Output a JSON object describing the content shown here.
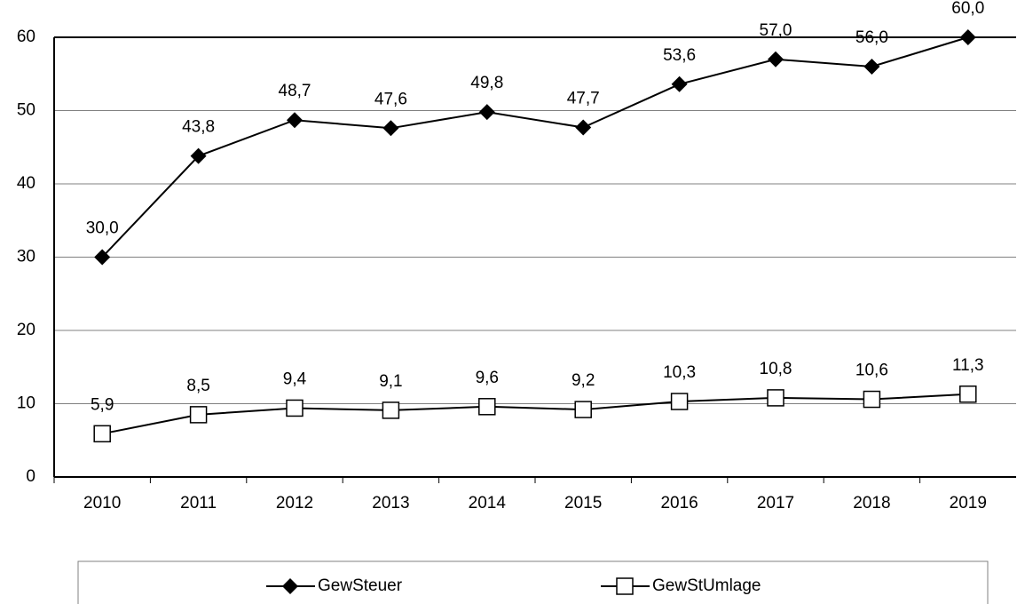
{
  "chart_data": {
    "type": "line",
    "categories": [
      "2010",
      "2011",
      "2012",
      "2013",
      "2014",
      "2015",
      "2016",
      "2017",
      "2018",
      "2019"
    ],
    "series": [
      {
        "name": "GewSteuer",
        "color": "#000000",
        "marker": "diamond",
        "values": [
          30.0,
          43.8,
          48.7,
          47.6,
          49.8,
          47.7,
          53.6,
          57.0,
          56.0,
          60.0
        ],
        "value_labels": [
          "30,0",
          "43,8",
          "48,7",
          "47,6",
          "49,8",
          "47,7",
          "53,6",
          "57,0",
          "56,0",
          "60,0"
        ]
      },
      {
        "name": "GewStUmlage",
        "color": "#000000",
        "marker": "square",
        "values": [
          5.9,
          8.5,
          9.4,
          9.1,
          9.6,
          9.2,
          10.3,
          10.8,
          10.6,
          11.3
        ],
        "value_labels": [
          "5,9",
          "8,5",
          "9,4",
          "9,1",
          "9,6",
          "9,2",
          "10,3",
          "10,8",
          "10,6",
          "11,3"
        ]
      }
    ],
    "ylim": [
      0,
      60
    ],
    "yticks": [
      0,
      10,
      20,
      30,
      40,
      50,
      60
    ],
    "grid": true,
    "legend": "bottom"
  }
}
